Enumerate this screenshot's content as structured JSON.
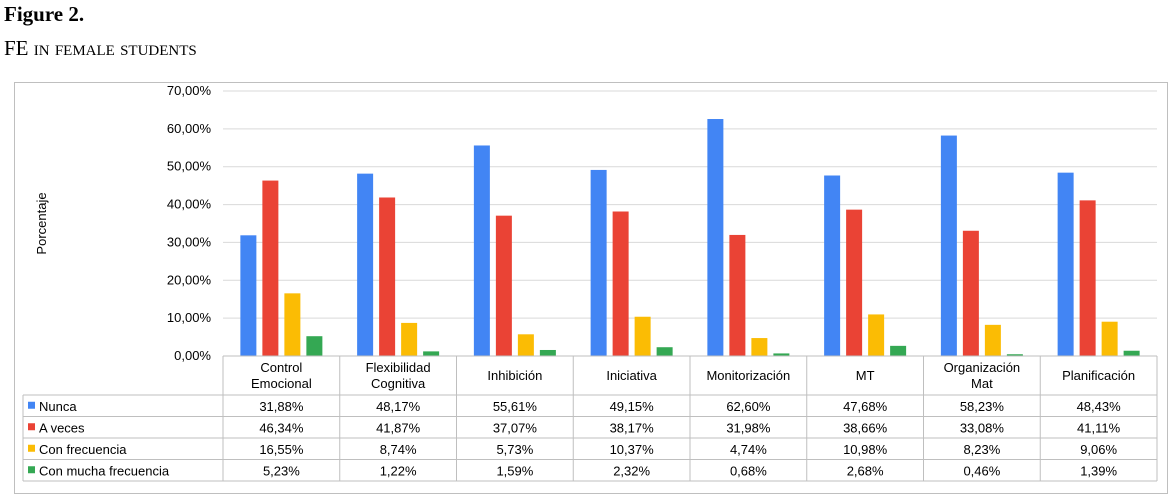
{
  "figure": {
    "title": "Figure 2.",
    "caption": "FE in female students"
  },
  "colors": {
    "Nunca": "#4285f4",
    "A veces": "#ea4335",
    "Con frecuencia": "#fbbc04",
    "Con mucha frecuencia": "#34a853"
  },
  "chart_data": {
    "type": "bar",
    "title": "",
    "ylabel": "Porcentaje",
    "xlabel": "",
    "ylim": [
      0,
      70
    ],
    "yticks": [
      "0,00%",
      "10,00%",
      "20,00%",
      "30,00%",
      "40,00%",
      "50,00%",
      "60,00%",
      "70,00%"
    ],
    "categories": [
      [
        "Control",
        "Emocional"
      ],
      [
        "Flexibilidad",
        "Cognitiva"
      ],
      [
        "Inhibición"
      ],
      [
        "Iniciativa"
      ],
      [
        "Monitorización"
      ],
      [
        "MT"
      ],
      [
        "Organización",
        "Mat"
      ],
      [
        "Planificación"
      ]
    ],
    "grid": true,
    "legend": "data-table",
    "series": [
      {
        "name": "Nunca",
        "values": [
          31.88,
          48.17,
          55.61,
          49.15,
          62.6,
          47.68,
          58.23,
          48.43
        ],
        "labels": [
          "31,88%",
          "48,17%",
          "55,61%",
          "49,15%",
          "62,60%",
          "47,68%",
          "58,23%",
          "48,43%"
        ]
      },
      {
        "name": "A veces",
        "values": [
          46.34,
          41.87,
          37.07,
          38.17,
          31.98,
          38.66,
          33.08,
          41.11
        ],
        "labels": [
          "46,34%",
          "41,87%",
          "37,07%",
          "38,17%",
          "31,98%",
          "38,66%",
          "33,08%",
          "41,11%"
        ]
      },
      {
        "name": "Con frecuencia",
        "values": [
          16.55,
          8.74,
          5.73,
          10.37,
          4.74,
          10.98,
          8.23,
          9.06
        ],
        "labels": [
          "16,55%",
          "8,74%",
          "5,73%",
          "10,37%",
          "4,74%",
          "10,98%",
          "8,23%",
          "9,06%"
        ]
      },
      {
        "name": "Con mucha frecuencia",
        "values": [
          5.23,
          1.22,
          1.59,
          2.32,
          0.68,
          2.68,
          0.46,
          1.39
        ],
        "labels": [
          "5,23%",
          "1,22%",
          "1,59%",
          "2,32%",
          "0,68%",
          "2,68%",
          "0,46%",
          "1,39%"
        ]
      }
    ]
  }
}
